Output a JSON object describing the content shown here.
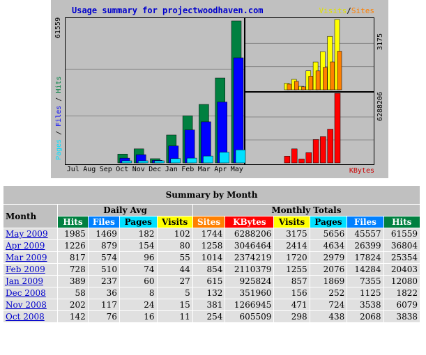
{
  "graph": {
    "title": "Usage summary for projectwoodhaven.com",
    "legend_visits": "Visits",
    "legend_sep": "/",
    "legend_sites": "Sites",
    "max_hits_label": "61559",
    "max_visits_label": "3175",
    "max_kbytes_label": "6288206",
    "left_axis_pages": "Pages",
    "left_axis_files": "Files",
    "left_axis_hits": "Hits",
    "months": [
      "Jul",
      "Aug",
      "Sep",
      "Oct",
      "Nov",
      "Dec",
      "Jan",
      "Feb",
      "Mar",
      "Apr",
      "May"
    ],
    "kbytes_label": "KBytes",
    "colors": {
      "hits": "#008040",
      "files": "#0000ff",
      "pages": "#00e0ff",
      "visits": "#ffff00",
      "sites": "#ff8000",
      "kbytes": "#ff0000"
    }
  },
  "chart_data": {
    "type": "bar",
    "categories": [
      "Jul",
      "Aug",
      "Sep",
      "Oct",
      "Nov",
      "Dec",
      "Jan",
      "Feb",
      "Mar",
      "Apr",
      "May"
    ],
    "series": [
      {
        "name": "Hits",
        "values": [
          0,
          0,
          0,
          3838,
          6079,
          1822,
          12080,
          20403,
          25354,
          36804,
          61559
        ]
      },
      {
        "name": "Files",
        "values": [
          0,
          0,
          0,
          2068,
          3538,
          1125,
          7355,
          14284,
          17824,
          26399,
          45557
        ]
      },
      {
        "name": "Pages",
        "values": [
          0,
          0,
          0,
          438,
          724,
          252,
          1869,
          2076,
          2979,
          4634,
          5656
        ]
      },
      {
        "name": "Visits",
        "values": [
          0,
          0,
          0,
          298,
          471,
          156,
          857,
          1255,
          1720,
          2414,
          3175
        ]
      },
      {
        "name": "Sites",
        "values": [
          0,
          0,
          0,
          254,
          381,
          132,
          615,
          854,
          1014,
          1258,
          1744
        ]
      },
      {
        "name": "KBytes",
        "values": [
          0,
          0,
          0,
          605509,
          1266945,
          351960,
          925824,
          2110379,
          2374219,
          3046464,
          6288206
        ]
      }
    ]
  },
  "table": {
    "caption": "Summary by Month",
    "month_header": "Month",
    "daily_avg_header": "Daily Avg",
    "monthly_totals_header": "Monthly Totals",
    "daily_cols": [
      "Hits",
      "Files",
      "Pages",
      "Visits"
    ],
    "monthly_cols": [
      "Sites",
      "KBytes",
      "Visits",
      "Pages",
      "Files",
      "Hits"
    ],
    "rows": [
      [
        "May 2009",
        "1985",
        "1469",
        "182",
        "102",
        "1744",
        "6288206",
        "3175",
        "5656",
        "45557",
        "61559"
      ],
      [
        "Apr 2009",
        "1226",
        "879",
        "154",
        "80",
        "1258",
        "3046464",
        "2414",
        "4634",
        "26399",
        "36804"
      ],
      [
        "Mar 2009",
        "817",
        "574",
        "96",
        "55",
        "1014",
        "2374219",
        "1720",
        "2979",
        "17824",
        "25354"
      ],
      [
        "Feb 2009",
        "728",
        "510",
        "74",
        "44",
        "854",
        "2110379",
        "1255",
        "2076",
        "14284",
        "20403"
      ],
      [
        "Jan 2009",
        "389",
        "237",
        "60",
        "27",
        "615",
        "925824",
        "857",
        "1869",
        "7355",
        "12080"
      ],
      [
        "Dec 2008",
        "58",
        "36",
        "8",
        "5",
        "132",
        "351960",
        "156",
        "252",
        "1125",
        "1822"
      ],
      [
        "Nov 2008",
        "202",
        "117",
        "24",
        "15",
        "381",
        "1266945",
        "471",
        "724",
        "3538",
        "6079"
      ],
      [
        "Oct 2008",
        "142",
        "76",
        "16",
        "11",
        "254",
        "605509",
        "298",
        "438",
        "2068",
        "3838"
      ]
    ]
  }
}
